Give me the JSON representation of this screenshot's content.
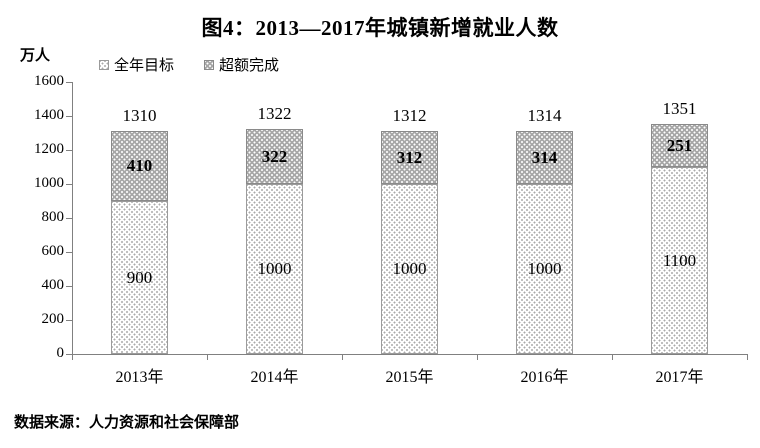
{
  "title": "图4：2013—2017年城镇新增就业人数",
  "unit_label": "万人",
  "source": "数据来源：人力资源和社会保障部",
  "colors": {
    "axis": "#808080",
    "text": "#000000",
    "target_fill_bg": "#ffffff",
    "target_fill_dot": "#ababab",
    "excess_fill_bg": "#a7a7a7",
    "excess_fill_dot": "#ffffff"
  },
  "chart_data": {
    "type": "bar",
    "stacked": true,
    "title": "图4：2013—2017年城镇新增就业人数",
    "ylabel": "万人",
    "xlabel": "",
    "categories": [
      "2013年",
      "2014年",
      "2015年",
      "2016年",
      "2017年"
    ],
    "series": [
      {
        "name": "全年目标",
        "values": [
          900,
          1000,
          1000,
          1000,
          1100
        ]
      },
      {
        "name": "超额完成",
        "values": [
          410,
          322,
          312,
          314,
          251
        ]
      }
    ],
    "totals": [
      1310,
      1322,
      1312,
      1314,
      1351
    ],
    "ylim": [
      0,
      1600
    ],
    "ytick_step": 200,
    "grid": false,
    "legend_position": "top-left"
  }
}
